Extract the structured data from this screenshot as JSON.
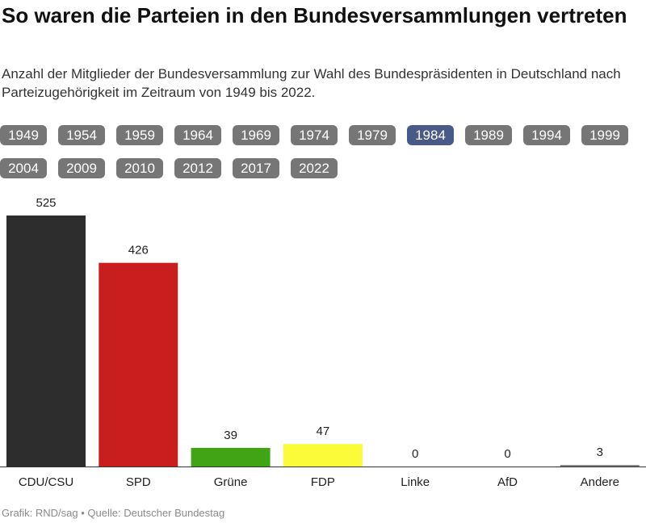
{
  "header": {
    "title": "So waren die Parteien in den Bundesversammlungen vertreten",
    "subtitle": "Anzahl der Mitglieder der Bundesversammlung zur Wahl des Bundespräsidenten in Deutschland nach Parteizugehörigkeit im Zeitraum von 1949 bis 2022."
  },
  "years": {
    "items": [
      "1949",
      "1954",
      "1959",
      "1964",
      "1969",
      "1974",
      "1979",
      "1984",
      "1989",
      "1994",
      "1999",
      "2004",
      "2009",
      "2010",
      "2012",
      "2017",
      "2022"
    ],
    "selected": "1984",
    "colors": {
      "inactive": "#767676",
      "active": "#4a5a86"
    }
  },
  "chart_data": {
    "type": "bar",
    "categories": [
      "CDU/CSU",
      "SPD",
      "Grüne",
      "FDP",
      "Linke",
      "AfD",
      "Andere"
    ],
    "values": [
      525,
      426,
      39,
      47,
      0,
      0,
      3
    ],
    "colors": [
      "#2d2d2d",
      "#c81e1e",
      "#40a414",
      "#fbfb3a",
      "#999999",
      "#3a8fd0",
      "#777777"
    ],
    "ylim": [
      0,
      525
    ],
    "grid": false,
    "data_labels": true
  },
  "footer": {
    "credit": "Grafik: RND/sag • Quelle: Deutscher Bundestag"
  }
}
